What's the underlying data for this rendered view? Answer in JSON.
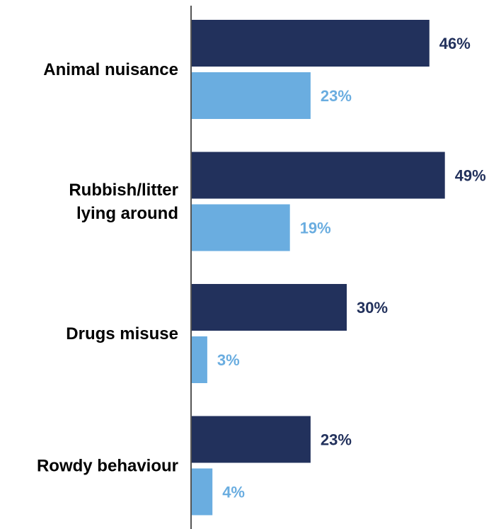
{
  "chart_data": {
    "type": "bar",
    "orientation": "horizontal",
    "categories": [
      [
        "Animal nuisance"
      ],
      [
        "Rubbish/litter",
        "lying around"
      ],
      [
        "Drugs misuse"
      ],
      [
        "Rowdy behaviour"
      ]
    ],
    "series": [
      {
        "values": [
          46,
          49,
          30,
          23
        ],
        "labels": [
          "46%",
          "49%",
          "30%",
          "23%"
        ],
        "color": "#22315c"
      },
      {
        "values": [
          23,
          19,
          3,
          4
        ],
        "labels": [
          "23%",
          "19%",
          "3%",
          "4%"
        ],
        "color": "#6aade0"
      }
    ],
    "xlim": [
      0,
      100
    ],
    "grid": false,
    "legend": "none",
    "title": "",
    "xlabel": "",
    "ylabel": ""
  }
}
